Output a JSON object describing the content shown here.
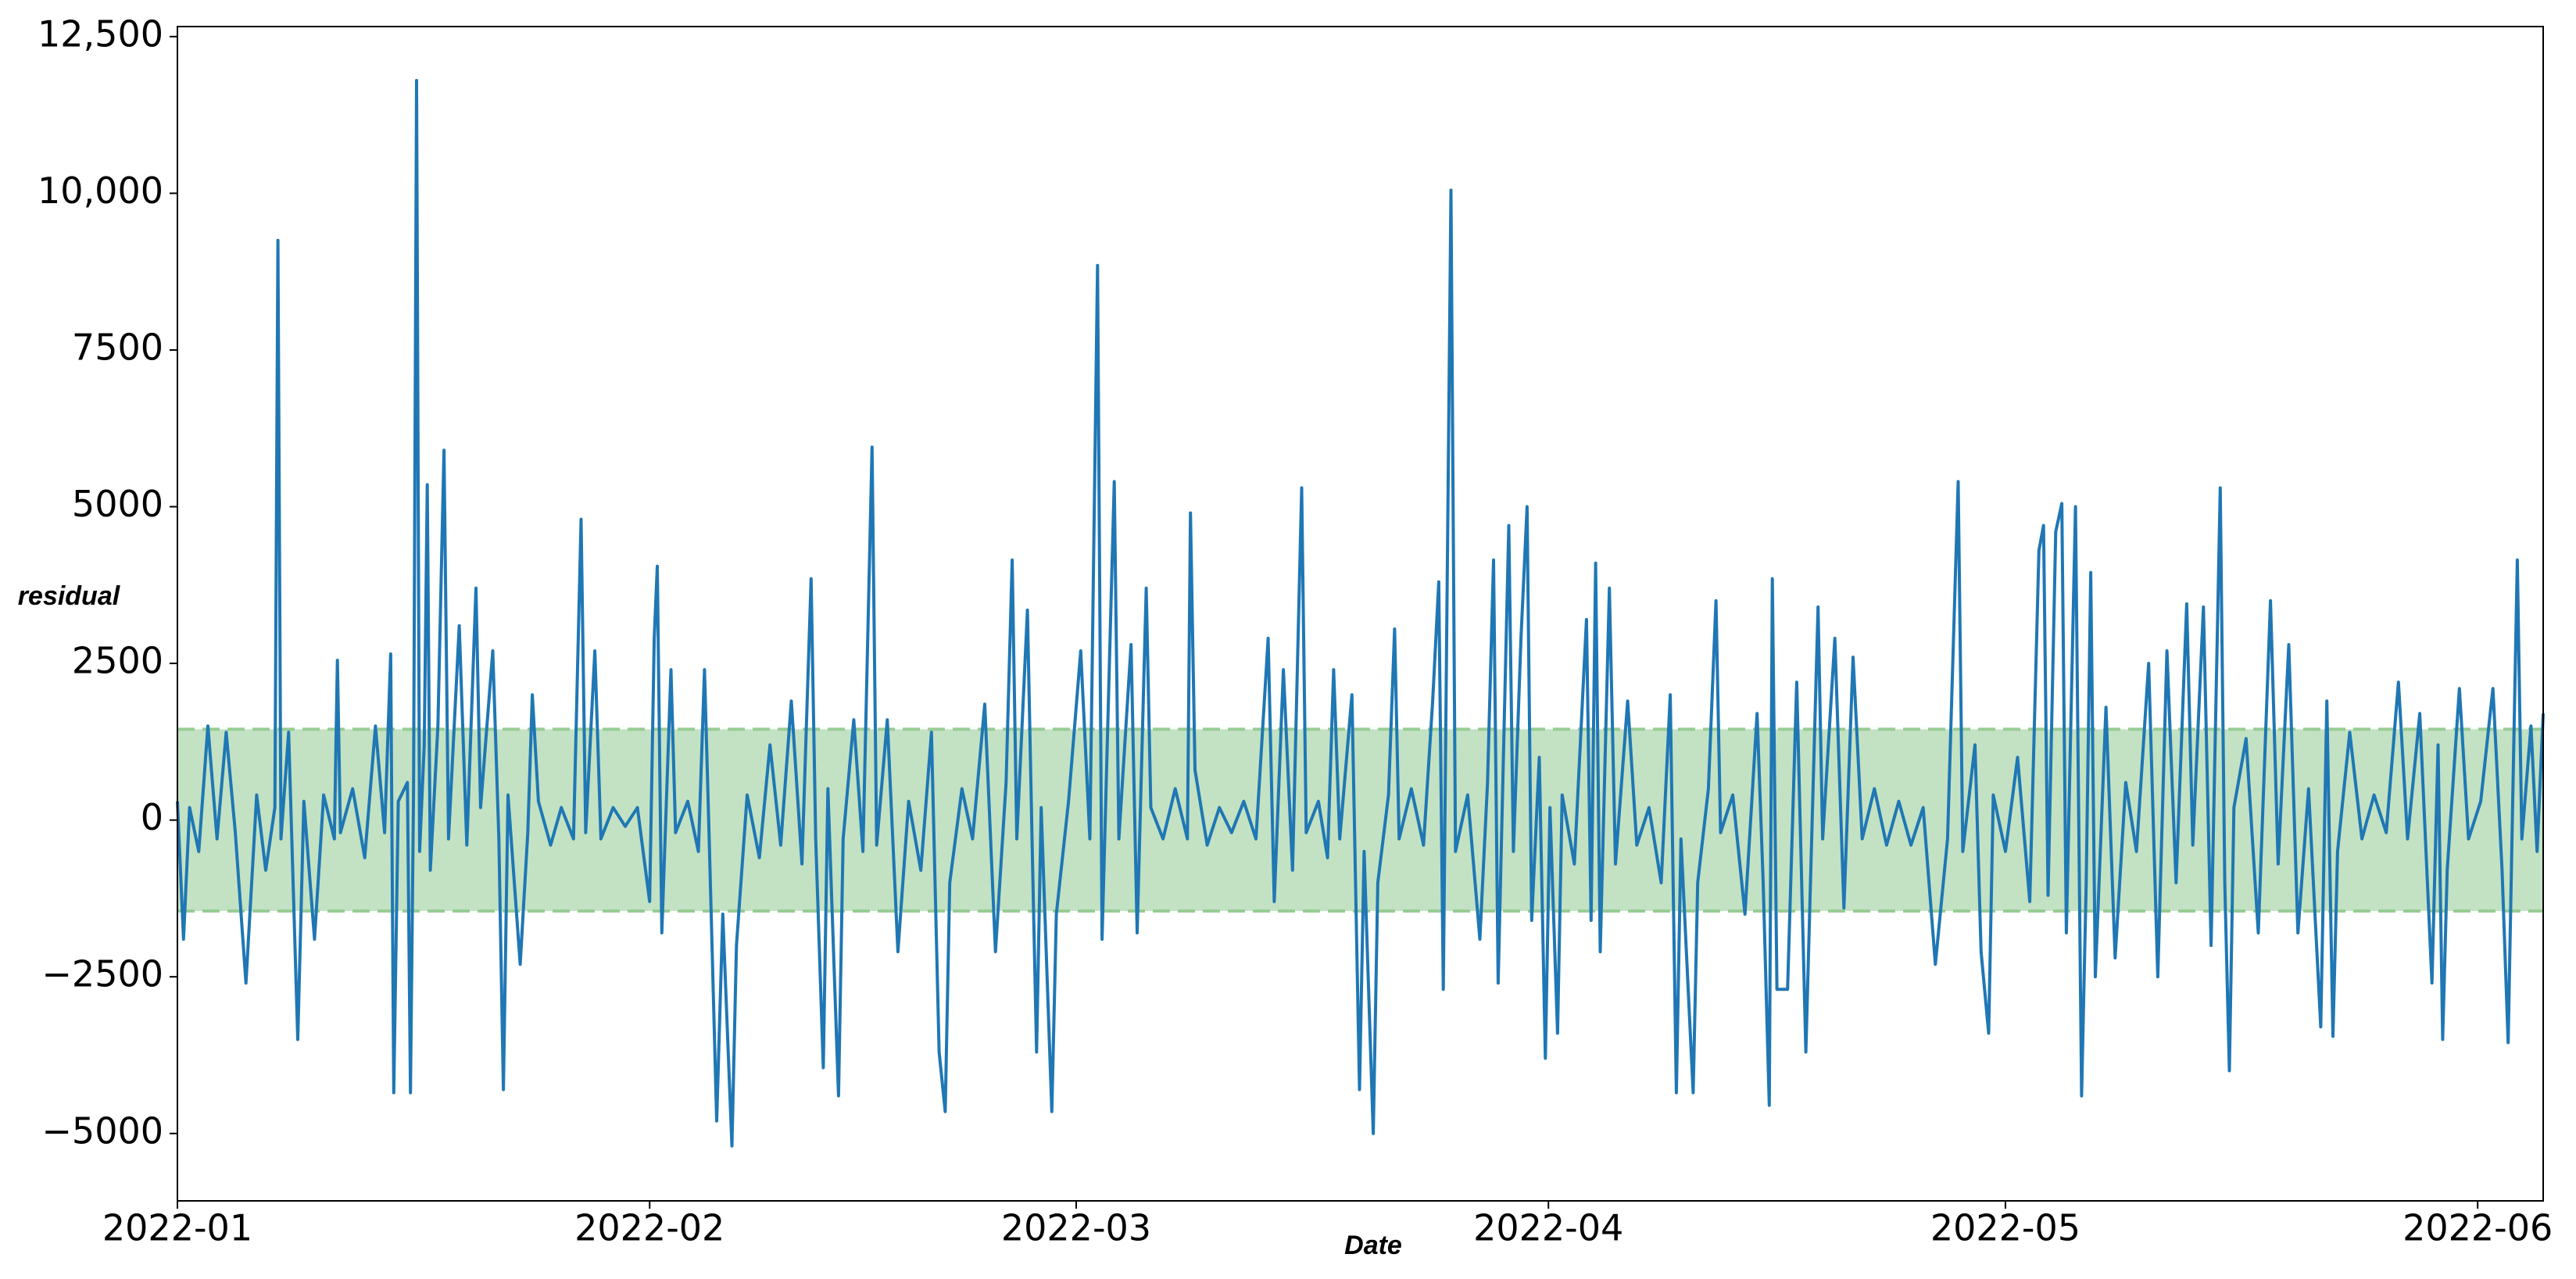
{
  "chart_data": {
    "type": "line",
    "x_label": "Date",
    "y_label": "residual",
    "color": "#1f77b4",
    "band": [
      -1450,
      1450
    ],
    "band_color": "#c3e2c3",
    "band_edge_color": "#98cc95",
    "xlim": [
      0,
      155.3
    ],
    "ylim": [
      -6075,
      12660
    ],
    "xticks": [
      {
        "value": 0,
        "label": "2022-01"
      },
      {
        "value": 31,
        "label": "2022-02"
      },
      {
        "value": 59,
        "label": "2022-03"
      },
      {
        "value": 90,
        "label": "2022-04"
      },
      {
        "value": 120,
        "label": "2022-05"
      },
      {
        "value": 151,
        "label": "2022-06"
      }
    ],
    "yticks": [
      {
        "value": -5000,
        "label": "−5000"
      },
      {
        "value": -2500,
        "label": "−2500"
      },
      0,
      2500,
      5000,
      7500,
      {
        "value": 10000,
        "label": "10,000"
      },
      {
        "value": 12500,
        "label": "12,500"
      }
    ],
    "x": [
      0.0,
      0.4,
      0.8,
      1.4,
      2.0,
      2.6,
      3.2,
      3.8,
      4.5,
      5.2,
      5.8,
      6.4,
      6.6,
      6.8,
      7.3,
      7.9,
      8.3,
      9.0,
      9.6,
      10.3,
      10.5,
      10.7,
      11.5,
      12.3,
      13.0,
      13.6,
      14.0,
      14.2,
      14.5,
      15.1,
      15.3,
      15.5,
      15.7,
      15.9,
      16.2,
      16.4,
      16.6,
      17.1,
      17.5,
      17.8,
      18.5,
      19.0,
      19.6,
      19.9,
      20.7,
      21.1,
      21.4,
      21.7,
      22.5,
      23.0,
      23.3,
      23.7,
      24.5,
      25.2,
      26.0,
      26.5,
      26.8,
      27.4,
      27.8,
      28.6,
      29.4,
      30.2,
      31.0,
      31.3,
      31.5,
      31.8,
      32.4,
      32.7,
      33.5,
      34.2,
      34.6,
      34.9,
      35.4,
      35.8,
      36.4,
      36.7,
      37.4,
      38.2,
      38.9,
      39.6,
      40.3,
      41.0,
      41.6,
      41.9,
      42.4,
      42.7,
      43.4,
      43.7,
      44.4,
      45.0,
      45.6,
      45.9,
      46.6,
      47.3,
      48.0,
      48.8,
      49.5,
      50.0,
      50.4,
      50.7,
      51.5,
      52.2,
      53.0,
      53.7,
      54.4,
      54.8,
      55.1,
      55.8,
      56.1,
      56.4,
      56.7,
      57.4,
      57.7,
      58.5,
      59.3,
      59.9,
      60.4,
      60.7,
      61.5,
      61.8,
      62.6,
      63.0,
      63.6,
      63.9,
      64.7,
      65.5,
      66.3,
      66.5,
      66.8,
      67.6,
      68.4,
      69.2,
      70.0,
      70.8,
      71.6,
      72.0,
      72.6,
      73.2,
      73.8,
      74.1,
      74.9,
      75.5,
      75.9,
      76.3,
      77.1,
      77.6,
      77.9,
      78.5,
      78.8,
      79.5,
      79.9,
      80.2,
      81.0,
      81.8,
      82.4,
      82.8,
      83.1,
      83.6,
      83.9,
      84.7,
      85.5,
      86.0,
      86.4,
      86.7,
      87.4,
      87.7,
      88.2,
      88.6,
      88.9,
      89.4,
      89.8,
      90.1,
      90.6,
      90.9,
      91.7,
      92.5,
      92.8,
      93.1,
      93.4,
      94.0,
      94.4,
      95.2,
      95.8,
      96.6,
      97.4,
      98.0,
      98.4,
      98.7,
      99.5,
      99.8,
      100.5,
      101.0,
      101.3,
      102.1,
      102.9,
      103.7,
      104.1,
      104.5,
      104.7,
      105.0,
      105.7,
      106.3,
      106.9,
      107.2,
      107.7,
      108.0,
      108.8,
      109.4,
      110.0,
      110.6,
      111.4,
      112.2,
      113.0,
      113.8,
      114.6,
      115.4,
      116.2,
      116.9,
      117.2,
      118.0,
      118.4,
      118.9,
      119.2,
      120.0,
      120.8,
      121.6,
      122.2,
      122.5,
      122.8,
      123.3,
      123.7,
      124.0,
      124.6,
      125.0,
      125.3,
      125.6,
      125.9,
      126.6,
      127.2,
      127.9,
      128.6,
      129.4,
      130.0,
      130.6,
      131.2,
      131.9,
      132.3,
      133.0,
      133.5,
      134.1,
      134.4,
      134.7,
      135.0,
      135.8,
      136.6,
      137.4,
      137.9,
      138.6,
      139.2,
      139.9,
      140.7,
      141.1,
      141.5,
      141.8,
      142.6,
      143.4,
      144.2,
      145.0,
      145.8,
      146.4,
      147.2,
      148.0,
      148.4,
      148.7,
      149.0,
      149.8,
      150.4,
      151.2,
      152.0,
      152.6,
      153.0,
      153.3,
      153.6,
      153.9,
      154.5,
      154.9,
      155.3
    ],
    "values": [
      300,
      -1900,
      200,
      -500,
      1500,
      -300,
      1400,
      -200,
      -2600,
      400,
      -800,
      200,
      9250,
      -300,
      1400,
      -3500,
      300,
      -1900,
      400,
      -300,
      2550,
      -200,
      500,
      -600,
      1500,
      -200,
      2650,
      -4350,
      300,
      600,
      -4350,
      400,
      11800,
      -500,
      1200,
      5350,
      -800,
      1500,
      5900,
      -300,
      3100,
      -400,
      3700,
      200,
      2700,
      -300,
      -4300,
      400,
      -2300,
      -200,
      2000,
      300,
      -400,
      200,
      -300,
      4800,
      -200,
      2700,
      -300,
      200,
      -100,
      200,
      -1300,
      2900,
      4050,
      -1800,
      2400,
      -200,
      300,
      -500,
      2400,
      -200,
      -4800,
      -1500,
      -5200,
      -2000,
      400,
      -600,
      1200,
      -400,
      1900,
      -700,
      3850,
      -300,
      -3950,
      500,
      -4400,
      -300,
      1600,
      -500,
      5950,
      -400,
      1600,
      -2100,
      300,
      -800,
      1400,
      -3700,
      -4650,
      -1000,
      500,
      -300,
      1850,
      -2100,
      600,
      4150,
      -300,
      3350,
      -300,
      -3700,
      200,
      -4650,
      -1500,
      300,
      2700,
      -300,
      8850,
      -1900,
      5400,
      -300,
      2800,
      -1800,
      3700,
      200,
      -300,
      500,
      -300,
      4900,
      800,
      -400,
      200,
      -200,
      300,
      -300,
      2900,
      -1300,
      2400,
      -800,
      5300,
      -200,
      300,
      -600,
      2400,
      -300,
      2000,
      -4300,
      -500,
      -5000,
      -1000,
      400,
      3050,
      -300,
      500,
      -400,
      1900,
      3800,
      -2700,
      10050,
      -500,
      400,
      -1900,
      600,
      4150,
      -2600,
      4700,
      -500,
      2900,
      5000,
      -1600,
      1000,
      -3800,
      200,
      -3400,
      400,
      -700,
      3200,
      -1600,
      4100,
      -2100,
      3700,
      -700,
      1900,
      -400,
      200,
      -1000,
      2000,
      -4350,
      -300,
      -4350,
      -1000,
      500,
      3500,
      -200,
      400,
      -1500,
      1700,
      -1000,
      -4550,
      3850,
      -2700,
      -2700,
      2200,
      -3700,
      -1000,
      3400,
      -300,
      2900,
      -1400,
      2600,
      -300,
      500,
      -400,
      300,
      -400,
      200,
      -2300,
      -300,
      5400,
      -500,
      1200,
      -2100,
      -3400,
      400,
      -500,
      1000,
      -1300,
      4300,
      4700,
      -1200,
      4600,
      5050,
      -1800,
      5000,
      -4400,
      -1000,
      3950,
      -2500,
      1800,
      -2200,
      600,
      -500,
      2500,
      -2500,
      2700,
      -1000,
      3450,
      -400,
      3400,
      -2000,
      5300,
      -1000,
      -4000,
      200,
      1300,
      -1800,
      3500,
      -700,
      2800,
      -1800,
      500,
      -3300,
      1900,
      -3450,
      -500,
      1400,
      -300,
      400,
      -200,
      2200,
      -300,
      1700,
      -2600,
      1200,
      -3500,
      -800,
      2100,
      -300,
      300,
      2100,
      -800,
      -3550,
      300,
      4150,
      -300,
      1500,
      -500,
      1700
    ]
  }
}
